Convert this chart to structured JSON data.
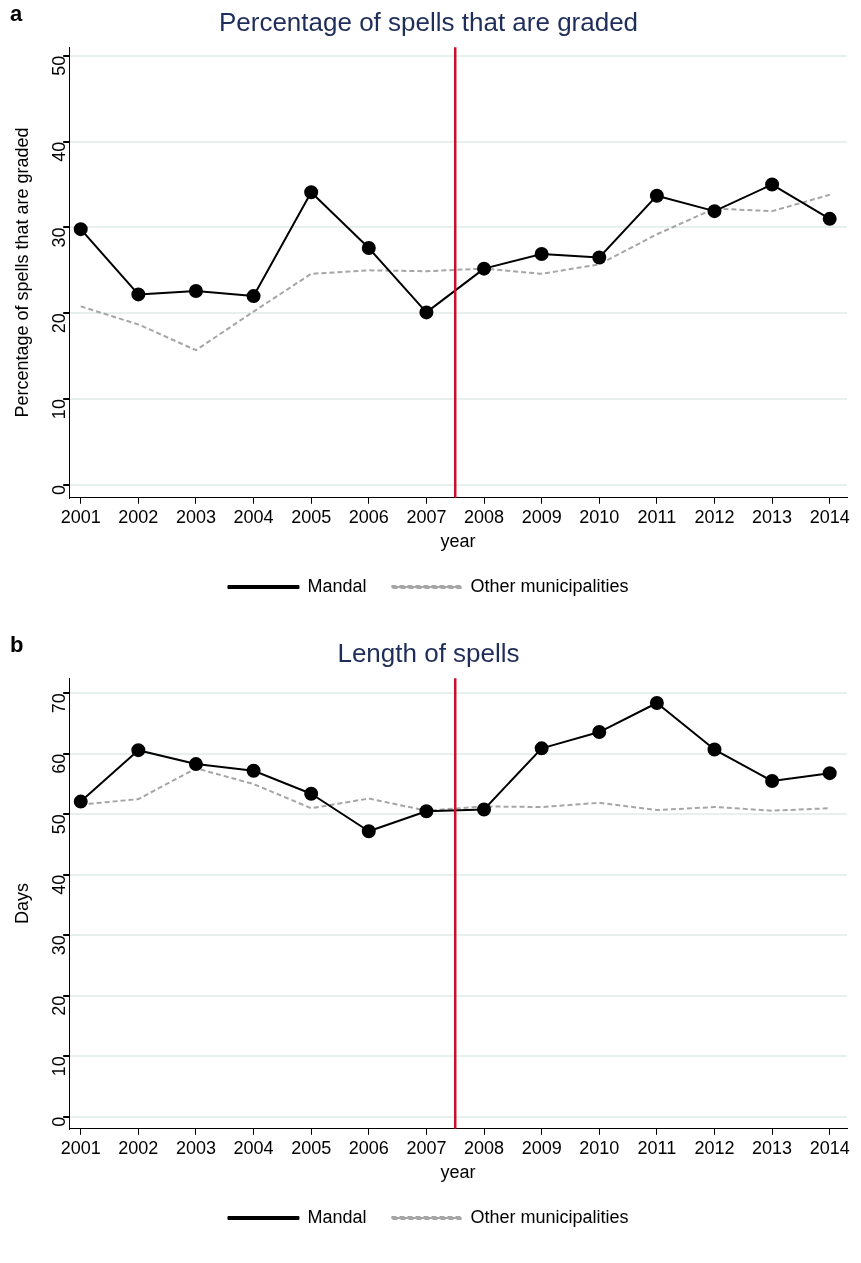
{
  "chart_data": [
    {
      "type": "line",
      "title": "Percentage of spells that are graded",
      "xlabel": "year",
      "ylabel": "Percentage of spells that are graded",
      "annotations": [
        "a"
      ],
      "x": [
        2001,
        2002,
        2003,
        2004,
        2005,
        2006,
        2007,
        2008,
        2009,
        2010,
        2011,
        2012,
        2013,
        2014
      ],
      "xlim": [
        2000.8,
        2014.3
      ],
      "xticks": [
        2001,
        2002,
        2003,
        2004,
        2005,
        2006,
        2007,
        2008,
        2009,
        2010,
        2011,
        2012,
        2013,
        2014
      ],
      "ylim": [
        -1.5,
        51
      ],
      "yticks": [
        0,
        10,
        20,
        30,
        40,
        50
      ],
      "grid": "y",
      "legend": "bottom",
      "ref_lines": [
        {
          "axis": "x",
          "value": 2007.5,
          "color": "#c8102e"
        }
      ],
      "series": [
        {
          "name": "Mandal",
          "color": "#000000",
          "marker": "circle",
          "line_style": "solid",
          "values": [
            29.8,
            22.2,
            22.6,
            22.0,
            34.1,
            27.6,
            20.1,
            25.2,
            26.9,
            26.5,
            33.7,
            31.9,
            35.0,
            31.0
          ]
        },
        {
          "name": "Other municipalities",
          "color": "#a6a6a6",
          "marker": "none",
          "line_style": "dashed",
          "values": [
            20.8,
            18.7,
            15.7,
            20.2,
            24.6,
            25.0,
            24.9,
            25.2,
            24.6,
            25.7,
            29.2,
            32.2,
            31.9,
            33.8
          ]
        }
      ]
    },
    {
      "type": "line",
      "title": "Length of spells",
      "xlabel": "year",
      "ylabel": "Days",
      "annotations": [
        "b"
      ],
      "x": [
        2001,
        2002,
        2003,
        2004,
        2005,
        2006,
        2007,
        2008,
        2009,
        2010,
        2011,
        2012,
        2013,
        2014
      ],
      "xlim": [
        2000.8,
        2014.3
      ],
      "xticks": [
        2001,
        2002,
        2003,
        2004,
        2005,
        2006,
        2007,
        2008,
        2009,
        2010,
        2011,
        2012,
        2013,
        2014
      ],
      "ylim": [
        -2,
        72.5
      ],
      "yticks": [
        0,
        10,
        20,
        30,
        40,
        50,
        60,
        70
      ],
      "grid": "y",
      "legend": "bottom",
      "ref_lines": [
        {
          "axis": "x",
          "value": 2007.5,
          "color": "#c8102e"
        }
      ],
      "series": [
        {
          "name": "Mandal",
          "color": "#000000",
          "marker": "circle",
          "line_style": "solid",
          "values": [
            52.1,
            60.6,
            58.3,
            57.2,
            53.4,
            47.2,
            50.5,
            50.8,
            60.9,
            63.6,
            68.4,
            60.7,
            55.5,
            56.8
          ]
        },
        {
          "name": "Other municipalities",
          "color": "#a6a6a6",
          "marker": "none",
          "line_style": "dashed",
          "values": [
            51.6,
            52.5,
            57.6,
            55.0,
            51.0,
            52.6,
            50.6,
            51.3,
            51.2,
            51.9,
            50.7,
            51.2,
            50.6,
            51.0
          ]
        }
      ]
    }
  ]
}
